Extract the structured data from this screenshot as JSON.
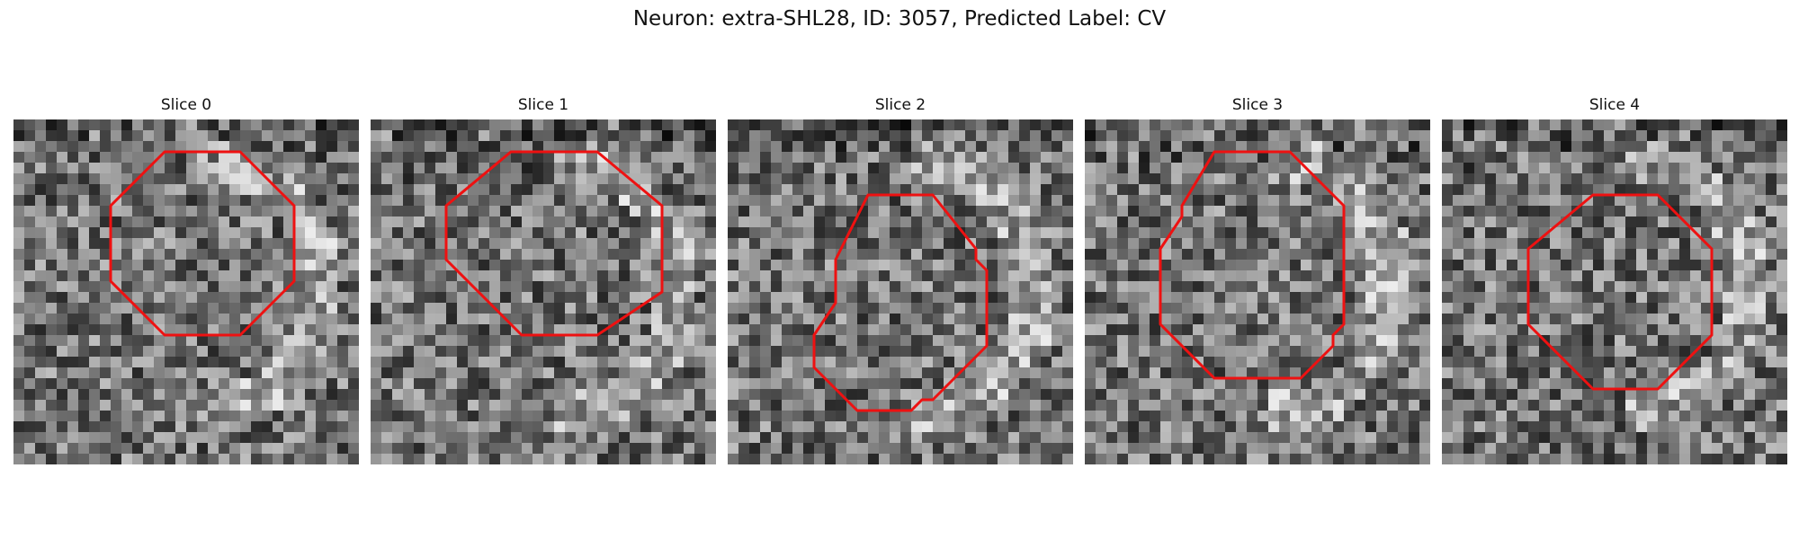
{
  "figure": {
    "title": "Neuron: extra-SHL28, ID: 3057, Predicted Label: CV"
  },
  "panels": [
    {
      "title": "Slice 0",
      "seed": 11,
      "outline": [
        [
          14,
          3
        ],
        [
          21,
          3
        ],
        [
          26,
          8
        ],
        [
          26,
          15
        ],
        [
          21,
          20
        ],
        [
          14,
          20
        ],
        [
          9,
          15
        ],
        [
          9,
          8
        ]
      ]
    },
    {
      "title": "Slice 1",
      "seed": 23,
      "outline": [
        [
          13,
          3
        ],
        [
          21,
          3
        ],
        [
          27,
          8
        ],
        [
          27,
          16
        ],
        [
          21,
          20
        ],
        [
          14,
          20
        ],
        [
          7,
          13
        ],
        [
          7,
          8
        ]
      ]
    },
    {
      "title": "Slice 2",
      "seed": 37,
      "outline": [
        [
          13,
          7
        ],
        [
          19,
          7
        ],
        [
          23,
          12
        ],
        [
          23,
          13
        ],
        [
          24,
          14
        ],
        [
          24,
          21
        ],
        [
          19,
          26
        ],
        [
          18,
          26
        ],
        [
          17,
          27
        ],
        [
          12,
          27
        ],
        [
          8,
          23
        ],
        [
          8,
          20
        ],
        [
          10,
          17
        ],
        [
          10,
          13
        ]
      ]
    },
    {
      "title": "Slice 3",
      "seed": 51,
      "outline": [
        [
          12,
          3
        ],
        [
          19,
          3
        ],
        [
          24,
          8
        ],
        [
          24,
          19
        ],
        [
          23,
          20
        ],
        [
          23,
          21
        ],
        [
          20,
          24
        ],
        [
          12,
          24
        ],
        [
          7,
          19
        ],
        [
          7,
          12
        ],
        [
          9,
          9
        ],
        [
          9,
          8
        ]
      ]
    },
    {
      "title": "Slice 4",
      "seed": 67,
      "outline": [
        [
          14,
          7
        ],
        [
          20,
          7
        ],
        [
          25,
          12
        ],
        [
          25,
          20
        ],
        [
          20,
          25
        ],
        [
          14,
          25
        ],
        [
          8,
          19
        ],
        [
          8,
          12
        ]
      ]
    }
  ],
  "colors": {
    "outline": "#ee1111"
  }
}
